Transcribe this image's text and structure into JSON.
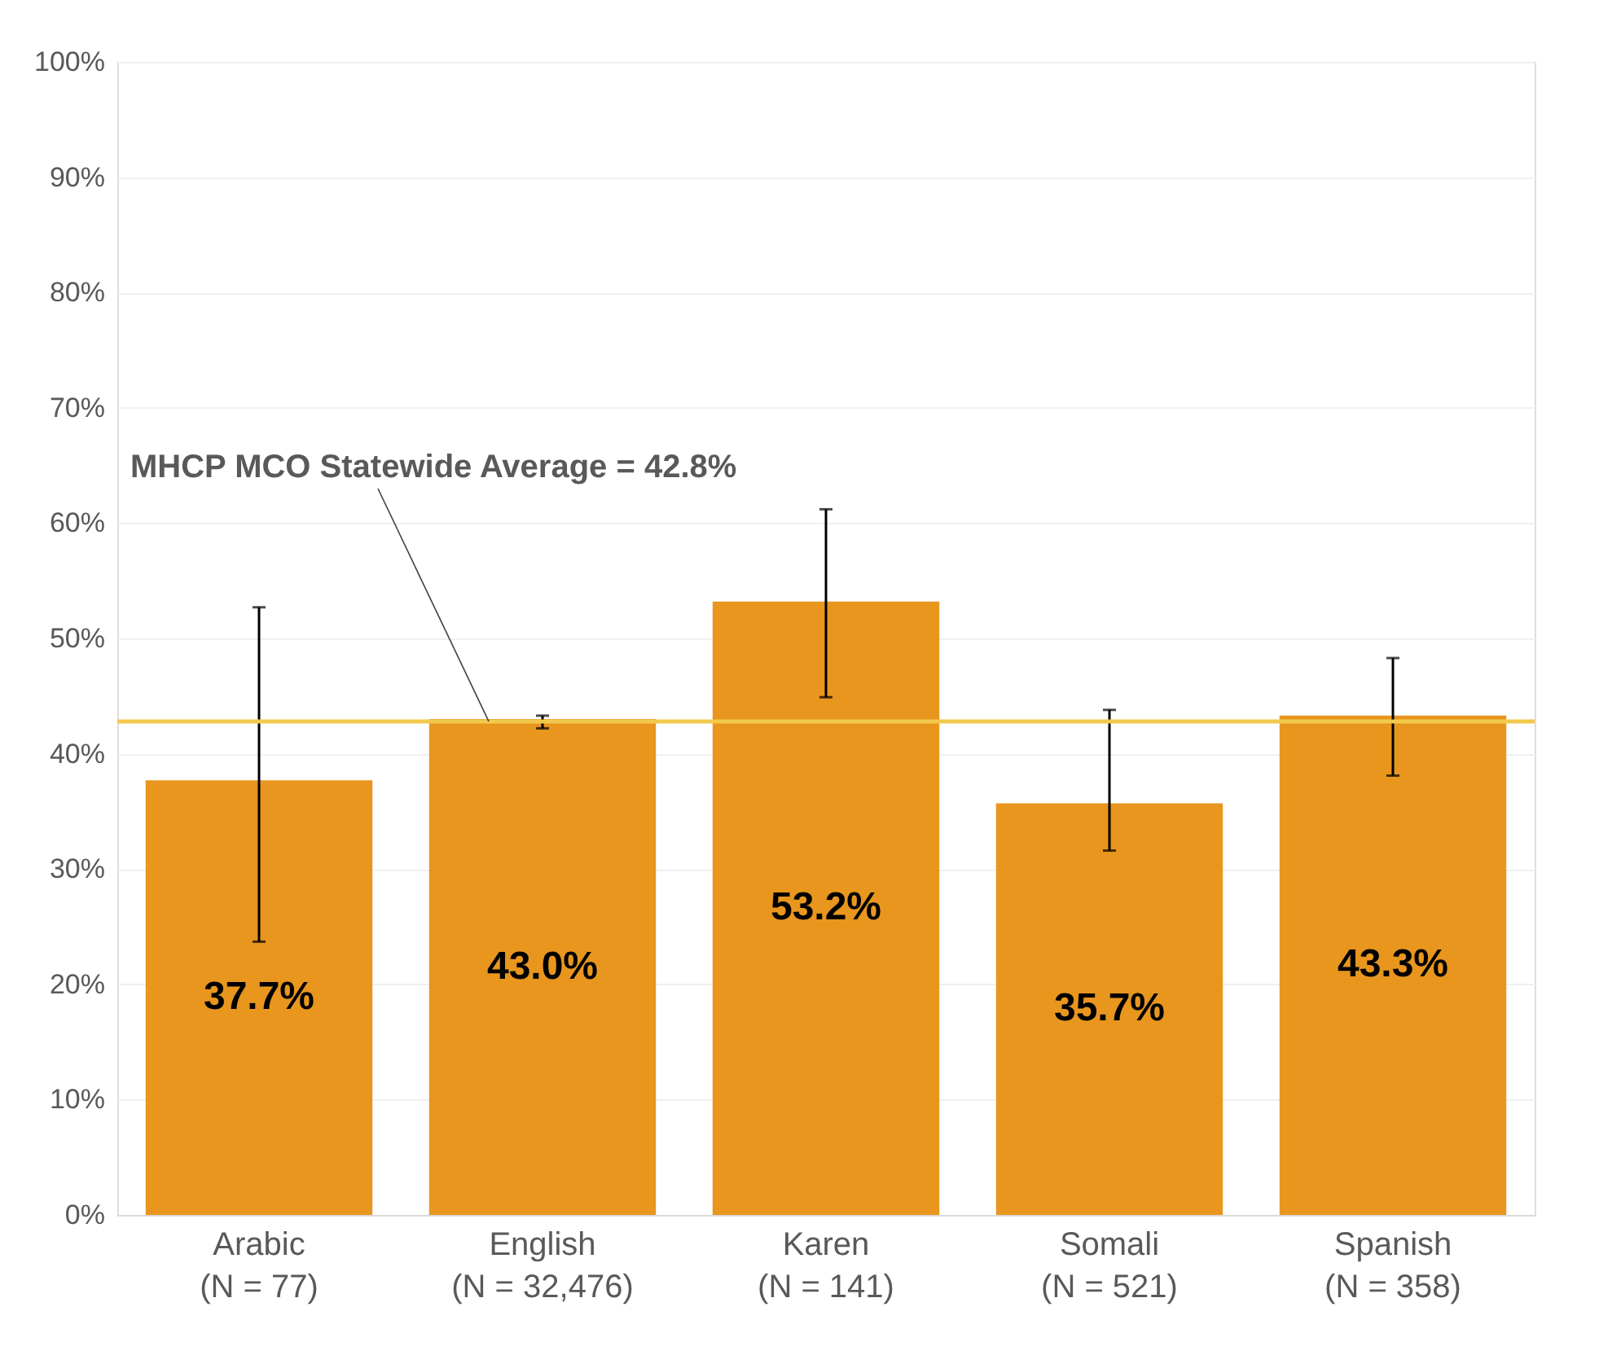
{
  "chart_data": {
    "type": "bar",
    "categories": [
      "Arabic\n(N = 77)",
      "English\n(N = 32,476)",
      "Karen\n(N = 141)",
      "Somali\n(N = 521)",
      "Spanish\n(N = 358)"
    ],
    "values": [
      37.7,
      43.0,
      53.2,
      35.7,
      43.3
    ],
    "color": "#e8961e",
    "errors": [
      [
        23.7,
        52.7
      ],
      [
        42.2,
        43.3
      ],
      [
        44.9,
        61.2
      ],
      [
        31.6,
        43.8
      ],
      [
        38.1,
        48.3
      ]
    ],
    "value_labels": [
      "37.7%",
      "43.0%",
      "53.2%",
      "35.7%",
      "43.3%"
    ],
    "ylim": [
      0,
      100
    ],
    "yticks": [
      {
        "value": 0,
        "label": "0%"
      },
      {
        "value": 10,
        "label": "10%"
      },
      {
        "value": 20,
        "label": "20%"
      },
      {
        "value": 30,
        "label": "30%"
      },
      {
        "value": 40,
        "label": "40%"
      },
      {
        "value": 50,
        "label": "50%"
      },
      {
        "value": 60,
        "label": "60%"
      },
      {
        "value": 70,
        "label": "70%"
      },
      {
        "value": 80,
        "label": "80%"
      },
      {
        "value": 90,
        "label": "90%"
      },
      {
        "value": 100,
        "label": "100%"
      }
    ],
    "grid": "y",
    "ref_lines": [
      {
        "axis": "y",
        "value": 42.8,
        "label": "MHCP MCO Statewide Average = 42.8%",
        "color": "#f2c94c"
      }
    ]
  }
}
